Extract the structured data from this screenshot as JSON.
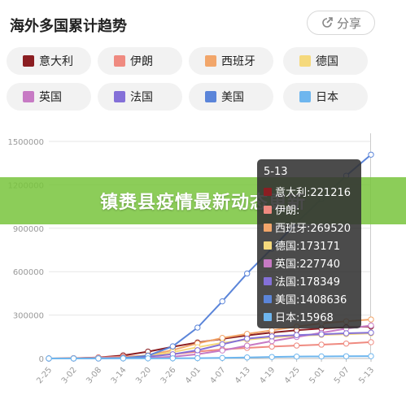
{
  "header": {
    "title": "海外多国累计趋势",
    "share_label": "分享"
  },
  "banner": {
    "text": "镇赉县疫情最新动态更新"
  },
  "legend": [
    {
      "name": "意大利",
      "color": "#8b1e22"
    },
    {
      "name": "伊朗",
      "color": "#ef8a80"
    },
    {
      "name": "西班牙",
      "color": "#f2a66a"
    },
    {
      "name": "德国",
      "color": "#f5d97c"
    },
    {
      "name": "英国",
      "color": "#c77ac4"
    },
    {
      "name": "法国",
      "color": "#8470d8"
    },
    {
      "name": "美国",
      "color": "#5b85d9"
    },
    {
      "name": "日本",
      "color": "#6eb6ee"
    }
  ],
  "tooltip": {
    "date": "5-13",
    "rows": [
      {
        "name": "意大利",
        "value": "221216",
        "color": "#8b1e22"
      },
      {
        "name": "伊朗",
        "value": "",
        "color": "#ef8a80"
      },
      {
        "name": "西班牙",
        "value": "269520",
        "color": "#f2a66a"
      },
      {
        "name": "德国",
        "value": "173171",
        "color": "#f5d97c"
      },
      {
        "name": "英国",
        "value": "227740",
        "color": "#c77ac4"
      },
      {
        "name": "法国",
        "value": "178349",
        "color": "#8470d8"
      },
      {
        "name": "美国",
        "value": "1408636",
        "color": "#5b85d9"
      },
      {
        "name": "日本",
        "value": "15968",
        "color": "#6eb6ee"
      }
    ]
  },
  "chart_data": {
    "type": "line",
    "title": "海外多国累计趋势",
    "categories": [
      "2-25",
      "3-02",
      "3-08",
      "3-14",
      "3-20",
      "3-26",
      "4-01",
      "4-07",
      "4-13",
      "4-19",
      "4-25",
      "5-01",
      "5-07",
      "5-13"
    ],
    "ylim": [
      0,
      1500000
    ],
    "yticks": [
      "0",
      "300000",
      "600000",
      "900000",
      "1200000",
      "1500000"
    ],
    "grid": true,
    "series": [
      {
        "name": "意大利",
        "color": "#8b1e22",
        "values": [
          322,
          2036,
          7375,
          21157,
          47021,
          80589,
          110574,
          135586,
          159516,
          178972,
          195351,
          207428,
          215858,
          221216
        ]
      },
      {
        "name": "伊朗",
        "color": "#ef8a80",
        "values": [
          95,
          1501,
          6566,
          12729,
          19644,
          29406,
          47593,
          62589,
          73303,
          82211,
          89328,
          95646,
          103135,
          112725
        ]
      },
      {
        "name": "西班牙",
        "color": "#f2a66a",
        "values": [
          6,
          120,
          589,
          6391,
          21571,
          57786,
          104118,
          141942,
          170099,
          194416,
          219764,
          242988,
          256855,
          269520
        ]
      },
      {
        "name": "德国",
        "color": "#f5d97c",
        "values": [
          18,
          150,
          1040,
          4585,
          19848,
          43938,
          77872,
          107663,
          130072,
          145184,
          156513,
          163009,
          168162,
          173171
        ]
      },
      {
        "name": "英国",
        "color": "#c77ac4",
        "values": [
          13,
          40,
          273,
          1140,
          3983,
          11658,
          29474,
          55242,
          88621,
          120067,
          148377,
          177454,
          206715,
          227740
        ]
      },
      {
        "name": "法国",
        "color": "#8470d8",
        "values": [
          14,
          191,
          1126,
          4499,
          12612,
          29155,
          56989,
          98010,
          136779,
          152894,
          161488,
          167178,
          174191,
          178349
        ]
      },
      {
        "name": "美国",
        "color": "#5b85d9",
        "values": [
          53,
          100,
          500,
          2900,
          19100,
          83800,
          213400,
          395000,
          587200,
          759800,
          938200,
          1103000,
          1263100,
          1408636
        ]
      },
      {
        "name": "日本",
        "color": "#6eb6ee",
        "values": [
          164,
          254,
          455,
          780,
          1007,
          1307,
          2178,
          3906,
          7255,
          10361,
          13031,
          14281,
          15253,
          15968
        ]
      }
    ]
  }
}
